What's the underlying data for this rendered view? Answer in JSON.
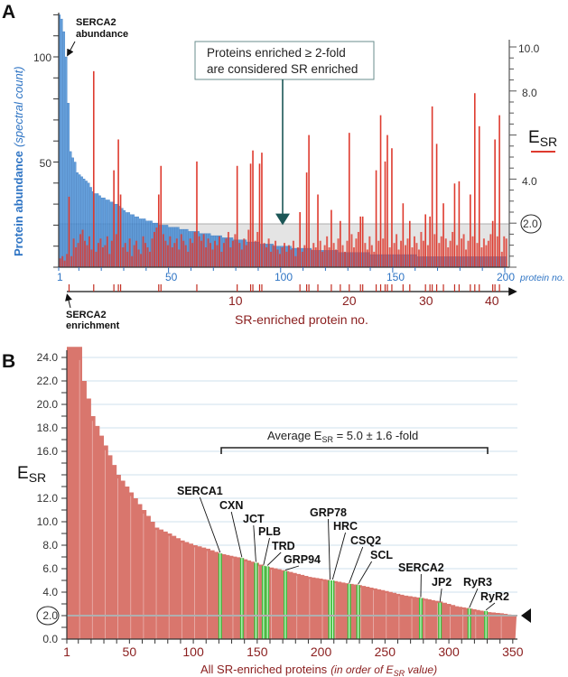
{
  "chart_data": [
    {
      "panel": "A",
      "type": "bar",
      "panel_label": "A",
      "x_label": "protein no.",
      "x_ticks": [
        "1",
        "50",
        "100",
        "150",
        "200"
      ],
      "x2_label": "SR-enriched protein no.",
      "x2_ticks": [
        "10",
        "20",
        "30",
        "40"
      ],
      "ylabel_main": "Protein abundance",
      "ylabel_sub": "(spectral count)",
      "y_ticks": [
        "50",
        "100"
      ],
      "ylim": [
        0,
        120
      ],
      "y2_label_main": "E",
      "y2_label_sub": "SR",
      "y2_ticks": [
        "4.0",
        "8.0",
        "10.0"
      ],
      "y2_threshold_label": "2.0",
      "y2lim": [
        0,
        10.5
      ],
      "threshold": 2.0,
      "callout_line1": "Proteins enriched ≥ 2-fold",
      "callout_line2": "are considered SR enriched",
      "annotation_abundance_line1": "SERCA2",
      "annotation_abundance_line2": "abundance",
      "annotation_enrichment_line1": "SERCA2",
      "annotation_enrichment_line2": "enrichment",
      "colors": {
        "abundance": "#4a8fd6",
        "enrichment": "#de3a2e",
        "band": "#e4e4e4",
        "arrow": "#1b5656"
      },
      "series": [
        {
          "name": "Protein abundance",
          "values": [
            120,
            118,
            112,
            100,
            78,
            55,
            52,
            50,
            45,
            44,
            43,
            42,
            41,
            40,
            38,
            36,
            35,
            35,
            34,
            33,
            33,
            32,
            32,
            31,
            31,
            30,
            30,
            29,
            28,
            27,
            26,
            26,
            25,
            25,
            24,
            24,
            23,
            23,
            23,
            22,
            22,
            22,
            21,
            21,
            21,
            20,
            20,
            20,
            20,
            19,
            19,
            19,
            19,
            19,
            18,
            18,
            18,
            18,
            17,
            17,
            17,
            17,
            17,
            16,
            16,
            16,
            16,
            16,
            15,
            15,
            15,
            15,
            15,
            14,
            14,
            14,
            14,
            14,
            13,
            13,
            13,
            13,
            13,
            13,
            12,
            12,
            12,
            12,
            12,
            12,
            11,
            11,
            11,
            11,
            11,
            11,
            10,
            10,
            10,
            10,
            10,
            10,
            10,
            10,
            9,
            9,
            9,
            9,
            9,
            9,
            9,
            9,
            9,
            8,
            8,
            8,
            8,
            8,
            8,
            8,
            8,
            8,
            8,
            8,
            8,
            7,
            7,
            7,
            7,
            7,
            7,
            7,
            7,
            7,
            7,
            7,
            7,
            7,
            7,
            6,
            6,
            6,
            6,
            6,
            6,
            6,
            6,
            6,
            6,
            6,
            6,
            6,
            6,
            6,
            6,
            6,
            6,
            6,
            6,
            6,
            5,
            5,
            5,
            5,
            5,
            5,
            5,
            5,
            5,
            5,
            5,
            5,
            5,
            5,
            5,
            5,
            5,
            5,
            5,
            5,
            5,
            5,
            5,
            5,
            5,
            5,
            5,
            5,
            5,
            5,
            5,
            5,
            5,
            5,
            5,
            5,
            5,
            5,
            5,
            5
          ]
        },
        {
          "name": "E_SR",
          "values": [
            0.4,
            0.5,
            0.3,
            0.6,
            3.2,
            0.5,
            1.3,
            0.9,
            1.1,
            1.5,
            1.7,
            1.2,
            1.0,
            1.4,
            0.8,
            8.9,
            0.7,
            1.1,
            1.3,
            0.9,
            1.0,
            1.4,
            0.6,
            1.2,
            4.4,
            1.5,
            5.8,
            3.3,
            0.9,
            1.1,
            0.7,
            1.3,
            0.5,
            1.0,
            1.2,
            0.8,
            0.6,
            1.4,
            1.1,
            0.9,
            0.7,
            1.3,
            1.6,
            1.8,
            3.3,
            4.6,
            1.5,
            1.2,
            1.0,
            1.4,
            0.9,
            1.1,
            1.3,
            0.8,
            1.5,
            1.2,
            1.0,
            0.7,
            1.3,
            1.1,
            1.6,
            4.8,
            1.4,
            1.2,
            1.5,
            0.9,
            1.3,
            1.1,
            0.8,
            1.2,
            1.0,
            1.4,
            0.7,
            1.1,
            1.3,
            1.6,
            0.9,
            1.2,
            1.5,
            4.6,
            1.1,
            0.8,
            1.3,
            1.0,
            1.7,
            4.7,
            5.3,
            1.2,
            1.6,
            4.7,
            5.2,
            1.1,
            0.9,
            1.3,
            0.7,
            1.0,
            1.2,
            0.8,
            0.6,
            0.9,
            1.1,
            0.7,
            1.0,
            0.8,
            1.2,
            0.5,
            0.9,
            2.5,
            0.7,
            1.0,
            4.3,
            6.0,
            0.8,
            1.1,
            0.9,
            3.3,
            1.2,
            0.7,
            1.0,
            1.4,
            0.9,
            2.6,
            1.1,
            0.8,
            1.3,
            2.1,
            1.0,
            0.7,
            1.2,
            6.1,
            1.5,
            0.9,
            1.3,
            1.6,
            2.3,
            2.3,
            1.1,
            0.8,
            1.4,
            1.0,
            0.7,
            4.4,
            1.2,
            6.9,
            1.3,
            4.8,
            6.0,
            0.9,
            5.4,
            1.1,
            1.5,
            0.8,
            1.2,
            2.9,
            1.0,
            1.3,
            2.1,
            0.9,
            1.4,
            1.1,
            0.8,
            1.6,
            1.2,
            2.4,
            1.0,
            2.3,
            7.3,
            1.5,
            5.6,
            1.1,
            1.4,
            2.9,
            1.3,
            0.9,
            1.2,
            1.6,
            3.8,
            1.0,
            3.9,
            1.3,
            1.5,
            0.8,
            1.2,
            3.3,
            1.4,
            7.9,
            1.1,
            6.4,
            0.9,
            1.3,
            1.0,
            1.2,
            1.5,
            2.1,
            5.8,
            1.4,
            6.9,
            0.7,
            1.4,
            1.3
          ]
        }
      ]
    },
    {
      "panel": "B",
      "type": "area",
      "panel_label": "B",
      "xlabel_main": "All SR-enriched proteins",
      "xlabel_sub": "(in order of E",
      "xlabel_sub2": "SR",
      "xlabel_sub3": " value)",
      "x_ticks": [
        "1",
        "50",
        "100",
        "150",
        "200",
        "250",
        "300",
        "350"
      ],
      "xlim": [
        1,
        352
      ],
      "ylabel_main": "E",
      "ylabel_sub": "SR",
      "y_ticks": [
        "0.0",
        "2.0",
        "4.0",
        "6.0",
        "8.0",
        "10.0",
        "12.0",
        "16.0",
        "18.0",
        "20.0",
        "22.0",
        "24.0"
      ],
      "ylim": [
        0,
        25
      ],
      "threshold": 2.0,
      "average_text_main": "Average E",
      "average_text_sub": "SR",
      "average_text_rest": " = 5.0 ± 1.6 -fold",
      "average_range": [
        120,
        330
      ],
      "colors": {
        "fill": "#d9766d",
        "highlight": "#3cbf3c",
        "grid": "#cfe0ec"
      },
      "curve": [
        [
          1,
          24.9
        ],
        [
          10,
          24.9
        ],
        [
          13,
          22
        ],
        [
          20,
          19
        ],
        [
          30,
          16.5
        ],
        [
          40,
          14
        ],
        [
          50,
          12.5
        ],
        [
          60,
          11
        ],
        [
          70,
          9.5
        ],
        [
          80,
          9
        ],
        [
          90,
          8.4
        ],
        [
          100,
          8
        ],
        [
          110,
          7.7
        ],
        [
          120,
          7.3
        ],
        [
          137,
          6.9
        ],
        [
          148,
          6.5
        ],
        [
          155,
          6.2
        ],
        [
          160,
          6.1
        ],
        [
          172,
          5.8
        ],
        [
          190,
          5.3
        ],
        [
          207,
          5.0
        ],
        [
          222,
          4.7
        ],
        [
          229,
          4.6
        ],
        [
          250,
          4.1
        ],
        [
          265,
          3.7
        ],
        [
          278,
          3.5
        ],
        [
          292,
          3.2
        ],
        [
          305,
          2.8
        ],
        [
          316,
          2.6
        ],
        [
          330,
          2.3
        ],
        [
          340,
          2.2
        ],
        [
          352,
          2.0
        ]
      ],
      "highlighted": [
        {
          "name": "SERCA1",
          "rank": 121,
          "esr": 7.3
        },
        {
          "name": "CXN",
          "rank": 138,
          "esr": 6.9
        },
        {
          "name": "JCT",
          "rank": 149,
          "esr": 6.5
        },
        {
          "name": "PLB",
          "rank": 155,
          "esr": 6.25
        },
        {
          "name": "TRD",
          "rank": 158,
          "esr": 6.2
        },
        {
          "name": "GRP94",
          "rank": 172,
          "esr": 5.8
        },
        {
          "name": "GRP78",
          "rank": 207,
          "esr": 5.0
        },
        {
          "name": "HRC",
          "rank": 209,
          "esr": 5.0
        },
        {
          "name": "CSQ2",
          "rank": 222,
          "esr": 4.7
        },
        {
          "name": "SCL",
          "rank": 229,
          "esr": 4.6
        },
        {
          "name": "SERCA2",
          "rank": 278,
          "esr": 3.5
        },
        {
          "name": "JP2",
          "rank": 293,
          "esr": 3.1
        },
        {
          "name": "RyR3",
          "rank": 316,
          "esr": 2.6
        },
        {
          "name": "RyR2",
          "rank": 329,
          "esr": 2.4
        }
      ]
    }
  ]
}
